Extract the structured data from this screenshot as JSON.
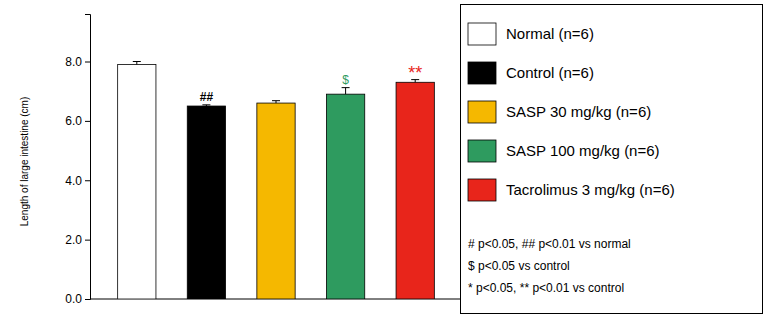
{
  "chart_data": {
    "type": "bar",
    "y_label": "Length of large intestine (cm)",
    "categories": [
      "Normal (n=6)",
      "Control (n=6)",
      "SASP 30 mg/kg (n=6)",
      "SASP 100 mg/kg (n=6)",
      "Tacrolimus 3 mg/kg (n=6)"
    ],
    "values": [
      7.9,
      6.5,
      6.6,
      6.9,
      7.3
    ],
    "errors": [
      0.1,
      0.04,
      0.08,
      0.22,
      0.09
    ],
    "colors": [
      "#ffffff",
      "#000000",
      "#f5b800",
      "#2e9b5f",
      "#e8251b"
    ],
    "significance": [
      null,
      "##",
      null,
      "$",
      "**"
    ],
    "notes": [
      "# p<0.05, ## p<0.01 vs normal",
      "$ p<0.05 vs control",
      "* p<0.05, ** p<0.01 vs control"
    ],
    "ylim": [
      0,
      9.6
    ],
    "yticks": [
      {
        "value": 0,
        "label": "0.0"
      },
      {
        "value": 2,
        "label": "2.0"
      },
      {
        "value": 4,
        "label": "4.0"
      },
      {
        "value": 6,
        "label": "6.0"
      },
      {
        "value": 8,
        "label": "8.0"
      }
    ],
    "tick_labels": "y",
    "legend": "right",
    "grid": false
  }
}
